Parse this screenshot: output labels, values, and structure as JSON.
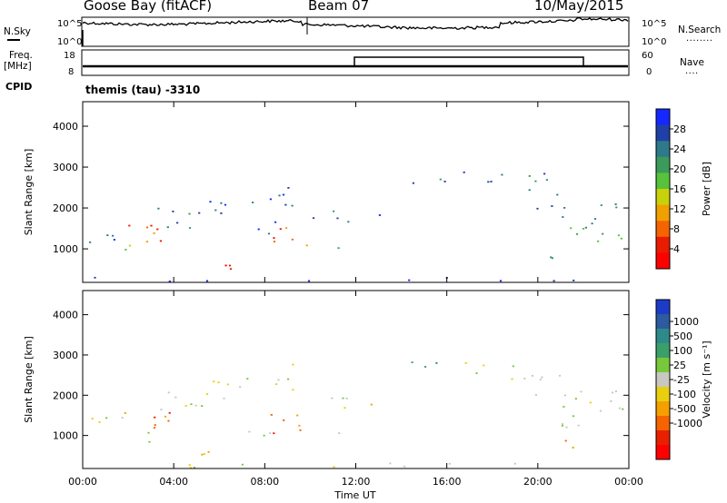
{
  "header": {
    "station": "Goose Bay (fitACF)",
    "beam": "Beam 07",
    "date": "10/May/2015"
  },
  "side_labels": {
    "nsky": "N.Sky",
    "nsearch": "N.Search",
    "nsearch_dots": "........",
    "freq": "Freq.",
    "freq_unit": "[MHz]",
    "nave": "Nave",
    "nave_dots": "....",
    "cpid": "CPID"
  },
  "noise_panel": {
    "ticks_left": [
      "10^5",
      "10^0"
    ],
    "ticks_right": [
      "10^5",
      "10^0"
    ]
  },
  "freq_panel": {
    "ticks_left": [
      "18",
      "8"
    ],
    "ticks_right": [
      "60",
      "0"
    ]
  },
  "cpid_text": "themis (tau) -3310",
  "chart_data": [
    {
      "type": "heatmap",
      "name": "power",
      "ylabel": "Slant Range [km]",
      "y_ticks": [
        1000,
        2000,
        3000,
        4000
      ],
      "ylim": [
        180,
        4600
      ],
      "xlim": [
        0,
        24
      ],
      "colorbar": {
        "label": "Power [dB]",
        "tick_labels": [
          "4",
          "8",
          "12",
          "16",
          "20",
          "24",
          "28"
        ],
        "colors": [
          "#1428ff",
          "#2040a8",
          "#2e7a8a",
          "#3c9a5a",
          "#58c23c",
          "#c8d20a",
          "#f0a000",
          "#f56400",
          "#e81c00",
          "#ff0000"
        ]
      }
    },
    {
      "type": "heatmap",
      "name": "velocity",
      "ylabel": "Slant Range [km]",
      "y_ticks": [
        1000,
        2000,
        3000,
        4000
      ],
      "ylim": [
        180,
        4600
      ],
      "xlim": [
        0,
        24
      ],
      "xlabel": "Time UT",
      "x_ticks": [
        "00:00",
        "04:00",
        "08:00",
        "12:00",
        "16:00",
        "20:00",
        "00:00"
      ],
      "colorbar": {
        "label": "Velocity [m s⁻¹]",
        "tick_labels": [
          "1000",
          "500",
          "100",
          "25",
          "-25",
          "-100",
          "-500",
          "-1000"
        ],
        "colors": [
          "#1c3cc8",
          "#2d5aa0",
          "#2e8a8a",
          "#3aa06a",
          "#78c83c",
          "#c8c8c0",
          "#e8d010",
          "#f5a000",
          "#f56400",
          "#e82000",
          "#ff0000"
        ]
      }
    }
  ]
}
